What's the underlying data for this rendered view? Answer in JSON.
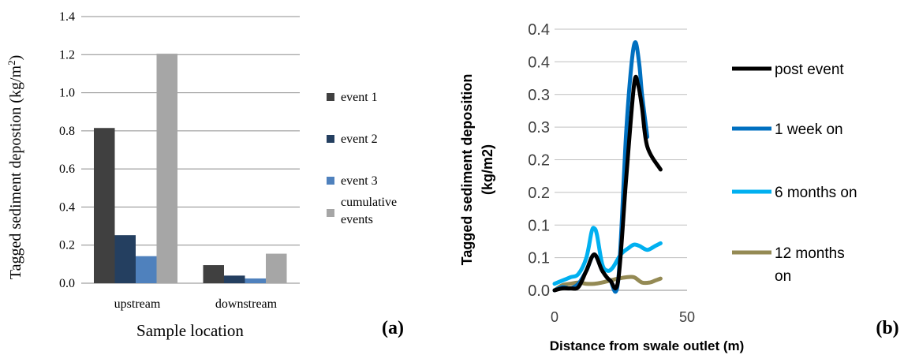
{
  "panels": {
    "a_label": "(a)",
    "b_label": "(b)"
  },
  "chart_data": [
    {
      "type": "bar",
      "categories": [
        "upstream",
        "downstream"
      ],
      "series": [
        {
          "name": "event 1",
          "color": "#404040",
          "values": [
            0.815,
            0.095
          ]
        },
        {
          "name": "event 2",
          "color": "#243f60",
          "values": [
            0.252,
            0.04
          ]
        },
        {
          "name": "event 3",
          "color": "#4f81bd",
          "values": [
            0.142,
            0.025
          ]
        },
        {
          "name": "cumulative events",
          "color": "#a6a6a6",
          "values": [
            1.205,
            0.155
          ]
        }
      ],
      "xlabel": "Sample location",
      "ylabel": "Tagged sediment depostion (kg/m²)",
      "ylabel_main": "Tagged sediment depostion (kg/m",
      "ylabel_sup": "2",
      "ylabel_close": ")",
      "ylim": [
        0,
        1.4
      ],
      "yticks": [
        "0.0",
        "0.2",
        "0.4",
        "0.6",
        "0.8",
        "1.0",
        "1.2",
        "1.4"
      ],
      "legend_labels": {
        "e1": "event 1",
        "e2": "event 2",
        "e3": "event 3",
        "cum1": "cumulative",
        "cum2": "events"
      },
      "grid": true,
      "legend_position": "right"
    },
    {
      "type": "line",
      "xlabel": "Distance from swale outlet (m)",
      "ylabel": "Tagged sediment deposition (kg/m2)",
      "ylabel_line1": "Tagged sediment deposition",
      "ylabel_line2": "(kg/m2)",
      "xlim": [
        0,
        50
      ],
      "xticks": [
        "0",
        "50"
      ],
      "ylim": [
        0,
        0.4
      ],
      "yticks": [
        "0.0",
        "0.1",
        "0.1",
        "0.2",
        "0.2",
        "0.3",
        "0.3",
        "0.4",
        "0.4"
      ],
      "series": [
        {
          "name": "post event",
          "color": "#000000",
          "x": [
            0,
            3,
            6,
            9,
            12,
            15,
            18,
            21,
            24,
            27,
            30,
            31.5,
            33,
            35,
            40
          ],
          "y": [
            0.0,
            0.003,
            0.003,
            0.005,
            0.03,
            0.055,
            0.03,
            0.015,
            0.015,
            0.17,
            0.315,
            0.315,
            0.28,
            0.22,
            0.185
          ]
        },
        {
          "name": "1 week on",
          "color": "#0070c0",
          "x": [
            0,
            3,
            6,
            9,
            12,
            15,
            18,
            21,
            24,
            27,
            29,
            30.5,
            32,
            33,
            35
          ],
          "y": [
            0.0,
            0.005,
            0.003,
            0.01,
            0.03,
            0.055,
            0.03,
            0.015,
            0.015,
            0.24,
            0.345,
            0.38,
            0.345,
            0.3,
            0.235
          ]
        },
        {
          "name": "6 months on",
          "color": "#00b0f0",
          "x": [
            0,
            3,
            6,
            9,
            12,
            14,
            15,
            16,
            18,
            20,
            22,
            25,
            28,
            30,
            32,
            35,
            38,
            40
          ],
          "y": [
            0.01,
            0.015,
            0.02,
            0.025,
            0.05,
            0.09,
            0.095,
            0.085,
            0.04,
            0.03,
            0.035,
            0.055,
            0.065,
            0.07,
            0.068,
            0.062,
            0.068,
            0.072
          ]
        },
        {
          "name": "12 months on",
          "color": "#948a54",
          "x": [
            0,
            3,
            6,
            9,
            12,
            15,
            18,
            21,
            24,
            27,
            30,
            33,
            36,
            38,
            40
          ],
          "y": [
            0.0,
            0.008,
            0.01,
            0.012,
            0.01,
            0.01,
            0.012,
            0.015,
            0.018,
            0.02,
            0.02,
            0.012,
            0.012,
            0.015,
            0.018
          ]
        }
      ],
      "legend_labels": {
        "post": "post event",
        "week": "1 week on",
        "six": "6 months on",
        "twelve1": "12 months",
        "twelve2": "on"
      },
      "grid": true,
      "legend_position": "right"
    }
  ]
}
